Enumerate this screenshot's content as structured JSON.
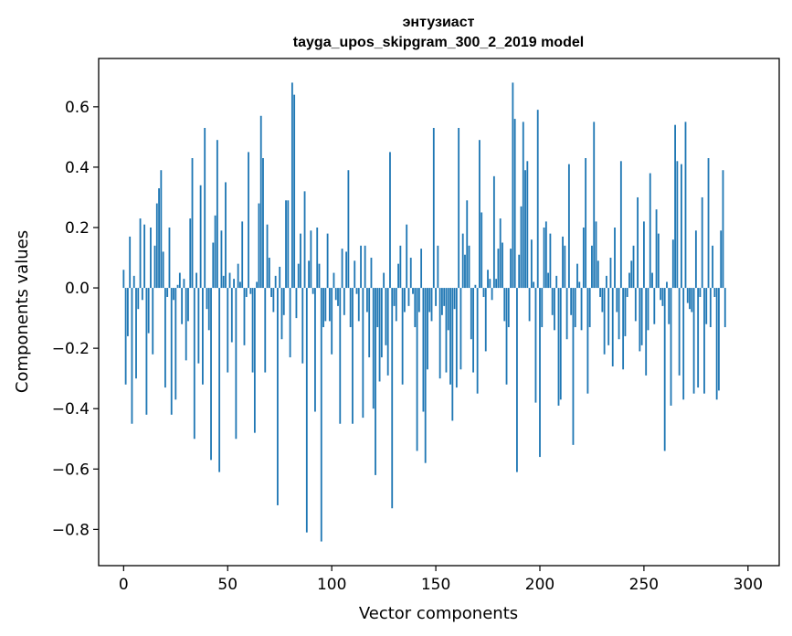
{
  "chart_data": {
    "type": "bar",
    "title": "энтузиаст",
    "subtitle": "tayga_upos_skipgram_300_2_2019 model",
    "xlabel": "Vector components",
    "ylabel": "Components values",
    "xlim": [
      -12,
      315
    ],
    "ylim": [
      -0.92,
      0.76
    ],
    "xticks": [
      0,
      50,
      100,
      150,
      200,
      250,
      300
    ],
    "xtick_labels": [
      "0",
      "50",
      "100",
      "150",
      "200",
      "250",
      "300"
    ],
    "yticks": [
      -0.8,
      -0.6,
      -0.4,
      -0.2,
      0.0,
      0.2,
      0.4,
      0.6
    ],
    "ytick_labels": [
      "−0.8",
      "−0.6",
      "−0.4",
      "−0.2",
      "0.0",
      "0.2",
      "0.4",
      "0.6"
    ],
    "bar_color": "#1f77b4",
    "bar_width": 0.8,
    "values": [
      0.06,
      -0.32,
      -0.16,
      0.17,
      -0.45,
      0.04,
      -0.3,
      -0.07,
      0.23,
      -0.04,
      0.21,
      -0.42,
      -0.15,
      0.2,
      -0.22,
      0.14,
      0.28,
      0.33,
      0.39,
      0.12,
      -0.33,
      -0.03,
      0.2,
      -0.42,
      -0.04,
      -0.37,
      0.01,
      0.05,
      -0.12,
      0.03,
      -0.24,
      -0.11,
      0.23,
      0.43,
      -0.5,
      0.05,
      -0.25,
      0.34,
      -0.32,
      0.53,
      -0.07,
      -0.14,
      -0.57,
      0.15,
      0.24,
      0.49,
      -0.61,
      0.19,
      0.04,
      0.35,
      -0.28,
      0.05,
      -0.18,
      0.03,
      -0.5,
      0.08,
      0.02,
      0.22,
      -0.19,
      -0.03,
      0.45,
      -0.02,
      -0.28,
      -0.48,
      0.02,
      0.28,
      0.57,
      0.43,
      -0.28,
      0.21,
      0.1,
      -0.03,
      -0.08,
      0.04,
      -0.72,
      0.07,
      -0.17,
      -0.09,
      0.29,
      0.29,
      -0.23,
      0.68,
      0.64,
      -0.1,
      0.08,
      0.18,
      -0.25,
      0.32,
      -0.81,
      0.09,
      0.19,
      -0.02,
      -0.41,
      0.2,
      0.08,
      -0.84,
      -0.13,
      -0.11,
      0.18,
      -0.11,
      -0.22,
      0.05,
      -0.04,
      -0.06,
      -0.45,
      0.13,
      -0.09,
      0.12,
      0.39,
      -0.13,
      -0.45,
      0.09,
      -0.02,
      -0.11,
      0.14,
      -0.43,
      0.14,
      -0.08,
      -0.23,
      0.1,
      -0.4,
      -0.62,
      -0.13,
      -0.31,
      -0.23,
      0.05,
      -0.19,
      -0.29,
      0.45,
      -0.73,
      -0.06,
      -0.11,
      0.08,
      0.14,
      -0.32,
      -0.08,
      0.21,
      -0.06,
      0.1,
      -0.02,
      -0.13,
      -0.54,
      -0.08,
      0.13,
      -0.41,
      -0.58,
      -0.27,
      -0.08,
      -0.11,
      0.53,
      -0.06,
      0.14,
      -0.3,
      -0.09,
      -0.06,
      -0.28,
      -0.14,
      -0.32,
      -0.44,
      -0.07,
      -0.33,
      0.53,
      -0.27,
      0.18,
      0.11,
      0.29,
      0.14,
      -0.17,
      -0.28,
      0.01,
      -0.35,
      0.49,
      0.25,
      -0.03,
      -0.21,
      0.06,
      0.03,
      -0.04,
      0.37,
      0.03,
      0.13,
      0.23,
      0.15,
      -0.11,
      -0.32,
      -0.13,
      0.13,
      0.68,
      0.56,
      -0.61,
      0.11,
      0.27,
      0.55,
      0.39,
      0.42,
      -0.11,
      0.16,
      0.02,
      -0.38,
      0.59,
      -0.56,
      -0.13,
      0.2,
      0.22,
      0.05,
      0.18,
      -0.09,
      -0.14,
      0.04,
      -0.39,
      -0.37,
      0.17,
      0.14,
      -0.17,
      0.41,
      -0.09,
      -0.52,
      -0.13,
      0.08,
      0.02,
      -0.14,
      0.2,
      0.43,
      -0.35,
      -0.13,
      0.14,
      0.55,
      0.22,
      0.09,
      -0.03,
      -0.08,
      -0.22,
      0.04,
      -0.19,
      0.1,
      -0.26,
      0.2,
      -0.08,
      -0.17,
      0.42,
      -0.27,
      -0.16,
      -0.03,
      0.05,
      0.09,
      0.14,
      -0.11,
      0.3,
      -0.21,
      -0.19,
      0.22,
      -0.29,
      -0.14,
      0.38,
      0.05,
      -0.12,
      0.26,
      0.18,
      -0.04,
      -0.06,
      -0.54,
      0.02,
      -0.12,
      -0.39,
      0.16,
      0.54,
      0.42,
      -0.29,
      0.41,
      -0.37,
      0.55,
      -0.05,
      -0.07,
      -0.08,
      -0.35,
      0.19,
      -0.33,
      -0.03,
      0.3,
      -0.35,
      -0.12,
      0.43,
      -0.13,
      0.14,
      -0.03,
      -0.37,
      -0.34,
      0.19,
      0.39,
      -0.13
    ]
  }
}
